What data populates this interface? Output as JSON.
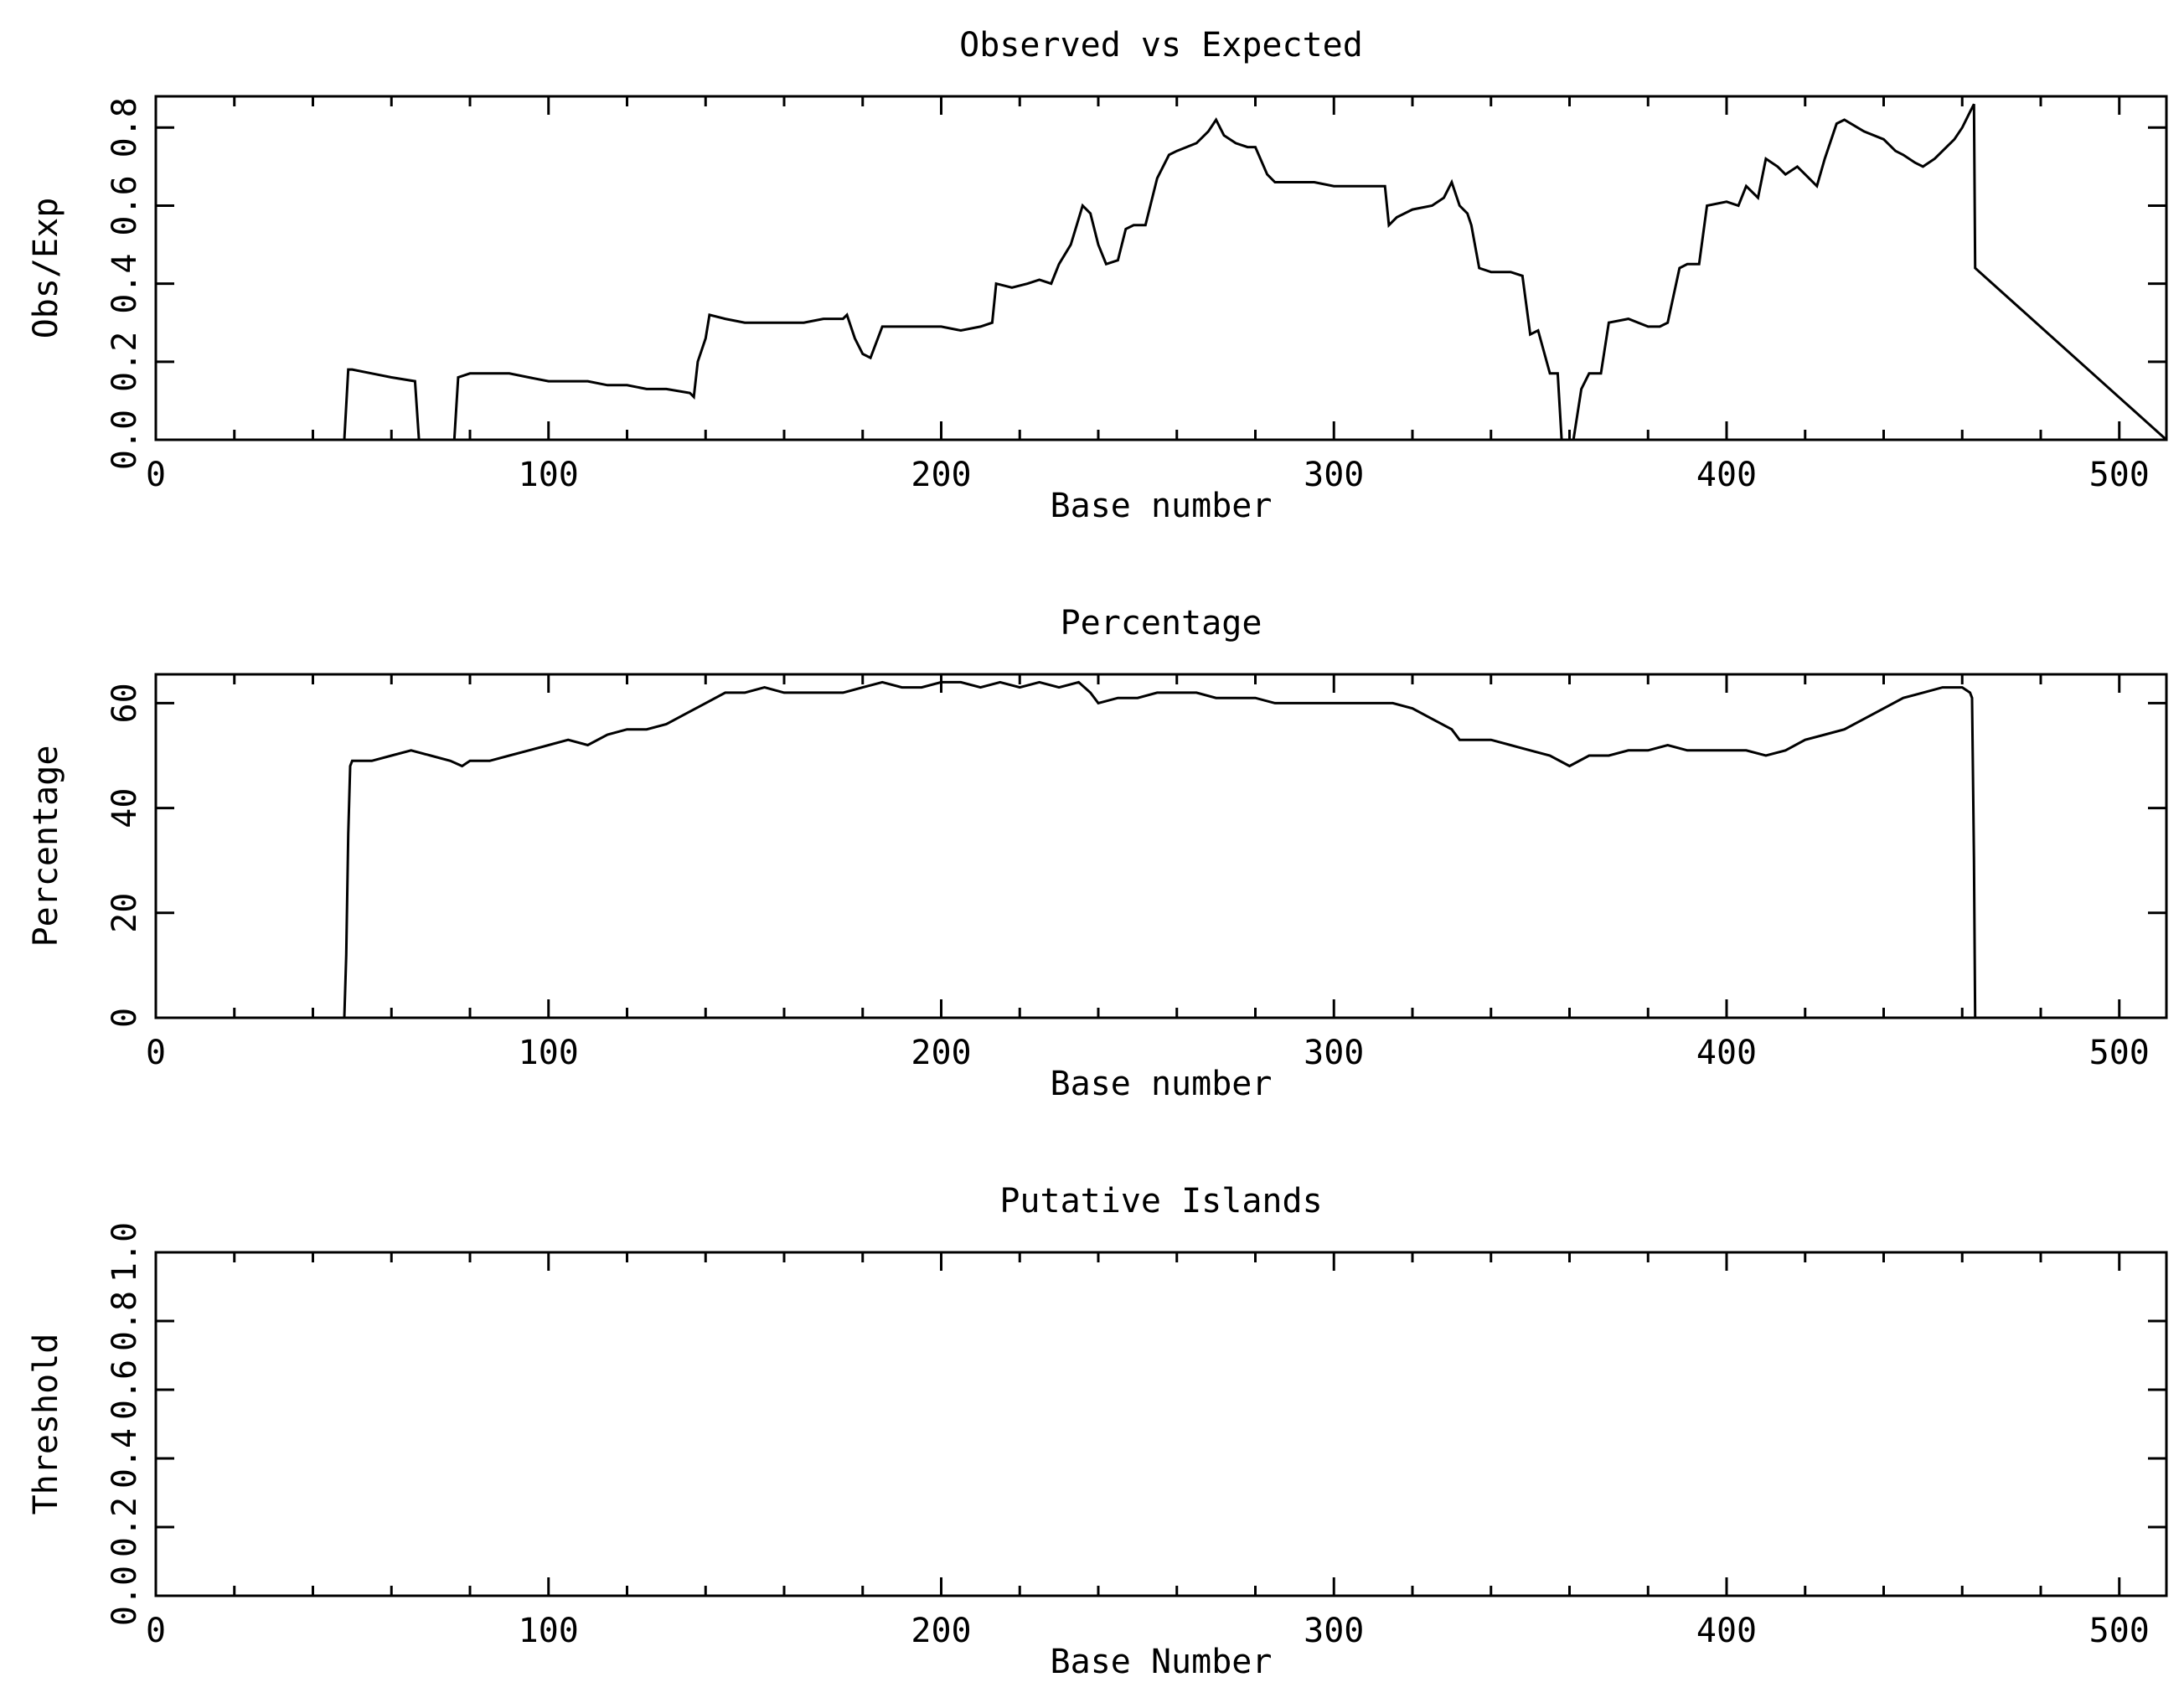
{
  "colors": {
    "background": "#ffffff",
    "ink": "#000000"
  },
  "chart_data": [
    {
      "type": "line",
      "title": "Observed vs Expected",
      "xlabel": "Base number",
      "ylabel": "Obs/Exp",
      "xlim": [
        0,
        512
      ],
      "ylim": [
        0,
        0.88
      ],
      "xticks": [
        0,
        100,
        200,
        300,
        400,
        500
      ],
      "xtick_labels": [
        "0",
        "100",
        "200",
        "300",
        "400",
        "500"
      ],
      "yticks": [
        0,
        0.2,
        0.4,
        0.6,
        0.8
      ],
      "ytick_labels": [
        "0.0",
        "0.2",
        "0.4",
        "0.6",
        "0.8"
      ],
      "grid": false,
      "series": [
        {
          "x": [
            0,
            48,
            49,
            50,
            55,
            60,
            66,
            67,
            76,
            77,
            80,
            85,
            90,
            95,
            100,
            105,
            110,
            115,
            120,
            125,
            130,
            136,
            137,
            138,
            140,
            141,
            145,
            150,
            155,
            160,
            165,
            170,
            175,
            176,
            178,
            180,
            182,
            185,
            190,
            195,
            200,
            205,
            210,
            213,
            214,
            218,
            222,
            225,
            228,
            230,
            233,
            236,
            238,
            240,
            242,
            245,
            247,
            249,
            252,
            255,
            258,
            260,
            265,
            268,
            270,
            272,
            275,
            278,
            280,
            283,
            285,
            290,
            295,
            300,
            305,
            310,
            313,
            314,
            316,
            320,
            325,
            328,
            330,
            332,
            334,
            335,
            337,
            340,
            345,
            348,
            350,
            352,
            355,
            357,
            358,
            361,
            363,
            365,
            368,
            370,
            375,
            380,
            383,
            385,
            388,
            390,
            393,
            395,
            400,
            403,
            405,
            408,
            410,
            413,
            415,
            418,
            420,
            423,
            425,
            428,
            430,
            435,
            440,
            443,
            445,
            448,
            450,
            453,
            455,
            458,
            460,
            462,
            463,
            463.3,
            512
          ],
          "y": [
            0,
            0,
            0.18,
            0.18,
            0.17,
            0.16,
            0.15,
            0,
            0,
            0.16,
            0.17,
            0.17,
            0.17,
            0.16,
            0.15,
            0.15,
            0.15,
            0.14,
            0.14,
            0.13,
            0.13,
            0.12,
            0.11,
            0.2,
            0.26,
            0.32,
            0.31,
            0.3,
            0.3,
            0.3,
            0.3,
            0.31,
            0.31,
            0.32,
            0.26,
            0.22,
            0.21,
            0.29,
            0.29,
            0.29,
            0.29,
            0.28,
            0.29,
            0.3,
            0.4,
            0.39,
            0.4,
            0.41,
            0.4,
            0.45,
            0.5,
            0.6,
            0.58,
            0.5,
            0.45,
            0.46,
            0.54,
            0.55,
            0.55,
            0.67,
            0.73,
            0.74,
            0.76,
            0.79,
            0.82,
            0.78,
            0.76,
            0.75,
            0.75,
            0.68,
            0.66,
            0.66,
            0.66,
            0.65,
            0.65,
            0.65,
            0.65,
            0.55,
            0.57,
            0.59,
            0.6,
            0.62,
            0.66,
            0.6,
            0.58,
            0.55,
            0.44,
            0.43,
            0.43,
            0.42,
            0.27,
            0.28,
            0.17,
            0.17,
            0.0,
            0.0,
            0.13,
            0.17,
            0.17,
            0.3,
            0.31,
            0.29,
            0.29,
            0.3,
            0.44,
            0.45,
            0.45,
            0.6,
            0.61,
            0.6,
            0.65,
            0.62,
            0.72,
            0.7,
            0.68,
            0.7,
            0.68,
            0.65,
            0.72,
            0.81,
            0.82,
            0.79,
            0.77,
            0.74,
            0.73,
            0.71,
            0.7,
            0.72,
            0.74,
            0.77,
            0.8,
            0.84,
            0.86,
            0.44,
            0
          ]
        }
      ]
    },
    {
      "type": "line",
      "title": "Percentage",
      "xlabel": "Base number",
      "ylabel": "Percentage",
      "xlim": [
        0,
        512
      ],
      "ylim": [
        0,
        65.5
      ],
      "xticks": [
        0,
        100,
        200,
        300,
        400,
        500
      ],
      "xtick_labels": [
        "0",
        "100",
        "200",
        "300",
        "400",
        "500"
      ],
      "yticks": [
        0,
        20,
        40,
        60
      ],
      "ytick_labels": [
        "0",
        "20",
        "40",
        "60"
      ],
      "grid": false,
      "series": [
        {
          "x": [
            0,
            48,
            48.5,
            49,
            49.5,
            50,
            55,
            60,
            65,
            70,
            75,
            78,
            80,
            85,
            90,
            95,
            100,
            105,
            110,
            115,
            120,
            125,
            130,
            135,
            140,
            145,
            150,
            155,
            160,
            165,
            170,
            175,
            180,
            185,
            190,
            195,
            200,
            205,
            210,
            215,
            220,
            225,
            230,
            235,
            238,
            240,
            245,
            250,
            255,
            260,
            265,
            270,
            275,
            280,
            285,
            290,
            295,
            300,
            305,
            310,
            315,
            320,
            325,
            330,
            332,
            335,
            340,
            345,
            350,
            355,
            360,
            365,
            370,
            375,
            380,
            385,
            390,
            395,
            400,
            405,
            410,
            415,
            420,
            425,
            430,
            435,
            440,
            445,
            450,
            455,
            460,
            462,
            462.5,
            463,
            463.3,
            512
          ],
          "y": [
            0,
            0,
            12,
            35,
            48,
            49,
            49,
            50,
            51,
            50,
            49,
            48,
            49,
            49,
            50,
            51,
            52,
            53,
            52,
            54,
            55,
            55,
            56,
            58,
            60,
            62,
            62,
            63,
            62,
            62,
            62,
            62,
            63,
            64,
            63,
            63,
            64,
            64,
            63,
            64,
            63,
            64,
            63,
            64,
            62,
            60,
            61,
            61,
            62,
            62,
            62,
            61,
            61,
            61,
            60,
            60,
            60,
            60,
            60,
            60,
            60,
            59,
            57,
            55,
            53,
            53,
            53,
            52,
            51,
            50,
            48,
            50,
            50,
            51,
            51,
            52,
            51,
            51,
            51,
            51,
            50,
            51,
            53,
            54,
            55,
            57,
            59,
            61,
            62,
            63,
            63,
            62,
            61,
            30,
            0,
            0
          ]
        }
      ]
    },
    {
      "type": "line",
      "title": "Putative Islands",
      "xlabel": "Base Number",
      "ylabel": "Threshold",
      "xlim": [
        0,
        512
      ],
      "ylim": [
        0,
        1.0
      ],
      "xticks": [
        0,
        100,
        200,
        300,
        400,
        500
      ],
      "xtick_labels": [
        "0",
        "100",
        "200",
        "300",
        "400",
        "500"
      ],
      "yticks": [
        0,
        0.2,
        0.4,
        0.6,
        0.8,
        1.0
      ],
      "ytick_labels": [
        "0.0",
        "0.2",
        "0.4",
        "0.6",
        "0.8",
        "1.0"
      ],
      "grid": false,
      "series": []
    }
  ]
}
